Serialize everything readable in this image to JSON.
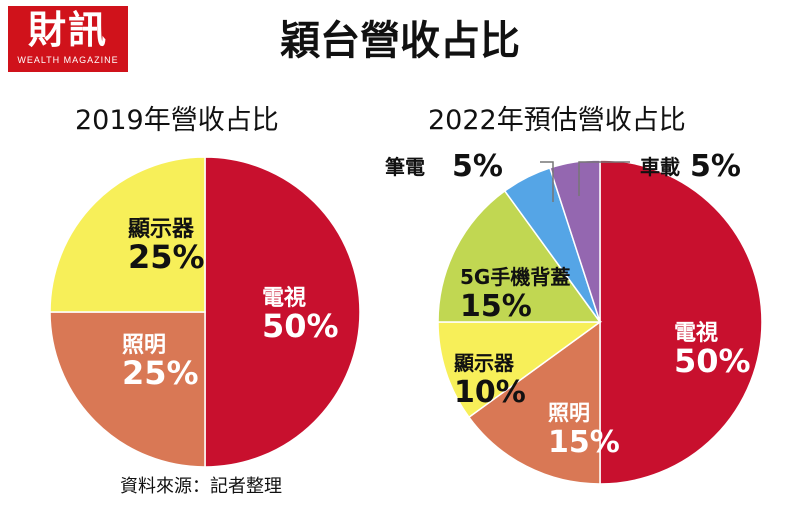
{
  "brand": {
    "name": "財訊",
    "tagline": "WEALTH MAGAZINE"
  },
  "title": "穎台營收占比",
  "source": "資料來源：記者整理",
  "colors": {
    "tv": "#c8102e",
    "lighting": "#d97855",
    "display": "#f7ef59",
    "phone_cover": "#c1d752",
    "laptop": "#55a5e6",
    "auto": "#9467b0"
  },
  "chart_data": [
    {
      "type": "pie",
      "title": "2019年營收占比",
      "slices": [
        {
          "label": "電視",
          "value": 50,
          "value_label": "50%",
          "color": "#c8102e"
        },
        {
          "label": "照明",
          "value": 25,
          "value_label": "25%",
          "color": "#d97855"
        },
        {
          "label": "顯示器",
          "value": 25,
          "value_label": "25%",
          "color": "#f7ef59"
        }
      ]
    },
    {
      "type": "pie",
      "title": "2022年預估營收占比",
      "slices": [
        {
          "label": "電視",
          "value": 50,
          "value_label": "50%",
          "color": "#c8102e"
        },
        {
          "label": "照明",
          "value": 15,
          "value_label": "15%",
          "color": "#d97855"
        },
        {
          "label": "顯示器",
          "value": 10,
          "value_label": "10%",
          "color": "#f7ef59"
        },
        {
          "label": "5G手機背蓋",
          "value": 15,
          "value_label": "15%",
          "color": "#c1d752"
        },
        {
          "label": "筆電",
          "value": 5,
          "value_label": "5%",
          "color": "#55a5e6"
        },
        {
          "label": "車載",
          "value": 5,
          "value_label": "5%",
          "color": "#9467b0"
        }
      ]
    }
  ]
}
